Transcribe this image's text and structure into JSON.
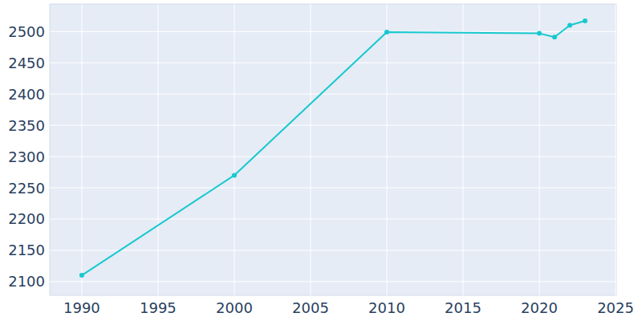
{
  "chart_data": {
    "type": "line",
    "x": [
      1990,
      2000,
      2010,
      2020,
      2021,
      2022,
      2023
    ],
    "values": [
      2110,
      2270,
      2499,
      2497,
      2491,
      2510,
      2517
    ],
    "color": "#17c8cf",
    "marker": "circle",
    "xlim": [
      1987.9,
      2025.05
    ],
    "xticks": [
      1990,
      1995,
      2000,
      2005,
      2010,
      2015,
      2020,
      2025
    ],
    "ylim": [
      2078,
      2544
    ],
    "yticks": [
      2100,
      2150,
      2200,
      2250,
      2300,
      2350,
      2400,
      2450,
      2500
    ],
    "grid": true
  }
}
